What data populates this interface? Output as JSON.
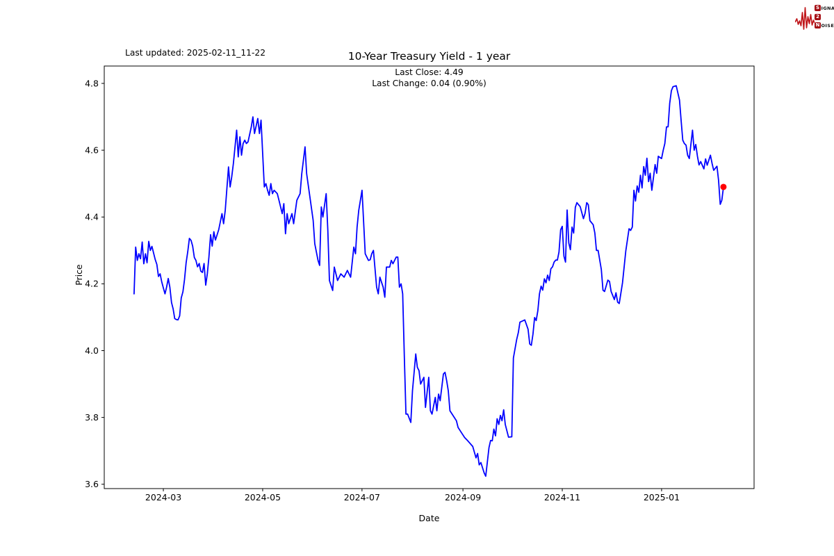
{
  "header": {
    "last_updated": "Last updated: 2025-02-11_11-22",
    "title": "10-Year Treasury Yield - 1 year",
    "subtitle_line1": "Last Close: 4.49",
    "subtitle_line2": "Last Change: 0.04 (0.90%)"
  },
  "logo": {
    "row1_initial": "S",
    "row1_rest": "IGNAL",
    "row2_initial": "2",
    "row2_rest": "",
    "row3_initial": "N",
    "row3_rest": "OISE",
    "wave_color": "#c0181c",
    "box_color": "#a50f15"
  },
  "chart_data": {
    "type": "line",
    "title": "10-Year Treasury Yield - 1 year",
    "subtitle": [
      "Last Close: 4.49",
      "Last Change: 0.04 (0.90%)"
    ],
    "xlabel": "Date",
    "ylabel": "Price",
    "last_close": 4.49,
    "last_change": "0.04 (0.90%)",
    "line_color": "#0000ff",
    "last_point_color": "#ff0000",
    "axis_color": "#000000",
    "x_tick_labels": [
      "2024-03",
      "2024-05",
      "2024-07",
      "2024-09",
      "2024-11",
      "2025-01"
    ],
    "x_tick_days": [
      18,
      79,
      140,
      202,
      263,
      324
    ],
    "y_ticks": [
      3.6,
      3.8,
      4.0,
      4.2,
      4.4,
      4.6,
      4.8
    ],
    "xlim_days": [
      -18.3,
      380.8
    ],
    "ylim": [
      3.587,
      4.852
    ],
    "grid": false,
    "legend": "none",
    "series": [
      {
        "name": "10-Year Treasury Yield",
        "points": [
          [
            0,
            4.17
          ],
          [
            1,
            4.31
          ],
          [
            2,
            4.27
          ],
          [
            3,
            4.29
          ],
          [
            4,
            4.275
          ],
          [
            5,
            4.325
          ],
          [
            6,
            4.26
          ],
          [
            7,
            4.29
          ],
          [
            8,
            4.263
          ],
          [
            9,
            4.327
          ],
          [
            10,
            4.3
          ],
          [
            11,
            4.312
          ],
          [
            13,
            4.273
          ],
          [
            14,
            4.258
          ],
          [
            15,
            4.222
          ],
          [
            16,
            4.23
          ],
          [
            17,
            4.206
          ],
          [
            18,
            4.188
          ],
          [
            19,
            4.17
          ],
          [
            20,
            4.19
          ],
          [
            21,
            4.216
          ],
          [
            22,
            4.19
          ],
          [
            23,
            4.144
          ],
          [
            24,
            4.125
          ],
          [
            25,
            4.096
          ],
          [
            26,
            4.093
          ],
          [
            27,
            4.092
          ],
          [
            28,
            4.104
          ],
          [
            29,
            4.158
          ],
          [
            30,
            4.176
          ],
          [
            31,
            4.213
          ],
          [
            32,
            4.263
          ],
          [
            33,
            4.297
          ],
          [
            34,
            4.336
          ],
          [
            35,
            4.33
          ],
          [
            36,
            4.313
          ],
          [
            37,
            4.279
          ],
          [
            38,
            4.27
          ],
          [
            39,
            4.251
          ],
          [
            40,
            4.261
          ],
          [
            41,
            4.238
          ],
          [
            42,
            4.234
          ],
          [
            43,
            4.261
          ],
          [
            44,
            4.196
          ],
          [
            45,
            4.23
          ],
          [
            46,
            4.28
          ],
          [
            47,
            4.347
          ],
          [
            48,
            4.313
          ],
          [
            49,
            4.356
          ],
          [
            50,
            4.331
          ],
          [
            52,
            4.362
          ],
          [
            54,
            4.41
          ],
          [
            55,
            4.38
          ],
          [
            56,
            4.42
          ],
          [
            58,
            4.55
          ],
          [
            59,
            4.49
          ],
          [
            60,
            4.52
          ],
          [
            61,
            4.56
          ],
          [
            63,
            4.66
          ],
          [
            64,
            4.58
          ],
          [
            65,
            4.64
          ],
          [
            66,
            4.585
          ],
          [
            67,
            4.62
          ],
          [
            68,
            4.63
          ],
          [
            69,
            4.62
          ],
          [
            70,
            4.625
          ],
          [
            72,
            4.67
          ],
          [
            73,
            4.7
          ],
          [
            74,
            4.65
          ],
          [
            76,
            4.695
          ],
          [
            77,
            4.65
          ],
          [
            78,
            4.69
          ],
          [
            80,
            4.49
          ],
          [
            81,
            4.5
          ],
          [
            82,
            4.48
          ],
          [
            83,
            4.465
          ],
          [
            84,
            4.5
          ],
          [
            85,
            4.47
          ],
          [
            86,
            4.48
          ],
          [
            88,
            4.47
          ],
          [
            89,
            4.45
          ],
          [
            91,
            4.41
          ],
          [
            92,
            4.44
          ],
          [
            93,
            4.35
          ],
          [
            94,
            4.41
          ],
          [
            95,
            4.38
          ],
          [
            97,
            4.41
          ],
          [
            98,
            4.38
          ],
          [
            100,
            4.45
          ],
          [
            102,
            4.47
          ],
          [
            103,
            4.53
          ],
          [
            105,
            4.61
          ],
          [
            106,
            4.53
          ],
          [
            108,
            4.46
          ],
          [
            110,
            4.39
          ],
          [
            111,
            4.32
          ],
          [
            113,
            4.27
          ],
          [
            114,
            4.255
          ],
          [
            115,
            4.43
          ],
          [
            116,
            4.4
          ],
          [
            118,
            4.47
          ],
          [
            119,
            4.36
          ],
          [
            120,
            4.21
          ],
          [
            122,
            4.18
          ],
          [
            123,
            4.25
          ],
          [
            125,
            4.21
          ],
          [
            127,
            4.23
          ],
          [
            129,
            4.22
          ],
          [
            131,
            4.24
          ],
          [
            133,
            4.22
          ],
          [
            135,
            4.31
          ],
          [
            136,
            4.29
          ],
          [
            137,
            4.37
          ],
          [
            138,
            4.42
          ],
          [
            140,
            4.48
          ],
          [
            142,
            4.29
          ],
          [
            144,
            4.27
          ],
          [
            145,
            4.272
          ],
          [
            146,
            4.29
          ],
          [
            147,
            4.3
          ],
          [
            149,
            4.19
          ],
          [
            150,
            4.17
          ],
          [
            151,
            4.22
          ],
          [
            153,
            4.19
          ],
          [
            154,
            4.16
          ],
          [
            155,
            4.25
          ],
          [
            157,
            4.25
          ],
          [
            158,
            4.27
          ],
          [
            159,
            4.26
          ],
          [
            161,
            4.28
          ],
          [
            162,
            4.28
          ],
          [
            163,
            4.19
          ],
          [
            164,
            4.2
          ],
          [
            165,
            4.17
          ],
          [
            166,
            3.98
          ],
          [
            167,
            3.81
          ],
          [
            168,
            3.81
          ],
          [
            170,
            3.785
          ],
          [
            171,
            3.88
          ],
          [
            173,
            3.99
          ],
          [
            174,
            3.95
          ],
          [
            175,
            3.94
          ],
          [
            176,
            3.9
          ],
          [
            178,
            3.92
          ],
          [
            179,
            3.83
          ],
          [
            181,
            3.92
          ],
          [
            182,
            3.82
          ],
          [
            183,
            3.81
          ],
          [
            185,
            3.86
          ],
          [
            186,
            3.82
          ],
          [
            187,
            3.87
          ],
          [
            188,
            3.85
          ],
          [
            190,
            3.93
          ],
          [
            191,
            3.935
          ],
          [
            192,
            3.91
          ],
          [
            193,
            3.88
          ],
          [
            194,
            3.82
          ],
          [
            196,
            3.805
          ],
          [
            198,
            3.79
          ],
          [
            199,
            3.77
          ],
          [
            201,
            3.755
          ],
          [
            203,
            3.74
          ],
          [
            205,
            3.73
          ],
          [
            208,
            3.713
          ],
          [
            210,
            3.679
          ],
          [
            211,
            3.692
          ],
          [
            212,
            3.658
          ],
          [
            213,
            3.665
          ],
          [
            215,
            3.634
          ],
          [
            216,
            3.624
          ],
          [
            218,
            3.71
          ],
          [
            219,
            3.731
          ],
          [
            220,
            3.73
          ],
          [
            221,
            3.765
          ],
          [
            222,
            3.745
          ],
          [
            223,
            3.796
          ],
          [
            224,
            3.779
          ],
          [
            225,
            3.806
          ],
          [
            226,
            3.79
          ],
          [
            227,
            3.823
          ],
          [
            228,
            3.779
          ],
          [
            230,
            3.741
          ],
          [
            232,
            3.742
          ],
          [
            233,
            3.978
          ],
          [
            235,
            4.033
          ],
          [
            236,
            4.054
          ],
          [
            237,
            4.085
          ],
          [
            240,
            4.092
          ],
          [
            242,
            4.064
          ],
          [
            243,
            4.02
          ],
          [
            244,
            4.016
          ],
          [
            245,
            4.05
          ],
          [
            246,
            4.099
          ],
          [
            247,
            4.09
          ],
          [
            248,
            4.12
          ],
          [
            249,
            4.17
          ],
          [
            250,
            4.193
          ],
          [
            251,
            4.181
          ],
          [
            252,
            4.215
          ],
          [
            253,
            4.203
          ],
          [
            254,
            4.226
          ],
          [
            255,
            4.21
          ],
          [
            256,
            4.245
          ],
          [
            257,
            4.251
          ],
          [
            258,
            4.265
          ],
          [
            259,
            4.271
          ],
          [
            260,
            4.271
          ],
          [
            261,
            4.295
          ],
          [
            262,
            4.362
          ],
          [
            263,
            4.372
          ],
          [
            264,
            4.283
          ],
          [
            265,
            4.265
          ],
          [
            266,
            4.421
          ],
          [
            267,
            4.322
          ],
          [
            268,
            4.302
          ],
          [
            269,
            4.37
          ],
          [
            270,
            4.352
          ],
          [
            271,
            4.429
          ],
          [
            272,
            4.443
          ],
          [
            273,
            4.437
          ],
          [
            274,
            4.431
          ],
          [
            276,
            4.395
          ],
          [
            277,
            4.411
          ],
          [
            278,
            4.443
          ],
          [
            279,
            4.437
          ],
          [
            280,
            4.389
          ],
          [
            282,
            4.377
          ],
          [
            283,
            4.352
          ],
          [
            284,
            4.3
          ],
          [
            285,
            4.3
          ],
          [
            287,
            4.243
          ],
          [
            288,
            4.181
          ],
          [
            289,
            4.177
          ],
          [
            291,
            4.211
          ],
          [
            292,
            4.207
          ],
          [
            293,
            4.177
          ],
          [
            295,
            4.153
          ],
          [
            296,
            4.173
          ],
          [
            297,
            4.145
          ],
          [
            298,
            4.141
          ],
          [
            300,
            4.203
          ],
          [
            302,
            4.298
          ],
          [
            304,
            4.365
          ],
          [
            305,
            4.36
          ],
          [
            306,
            4.37
          ],
          [
            307,
            4.48
          ],
          [
            308,
            4.448
          ],
          [
            309,
            4.493
          ],
          [
            310,
            4.474
          ],
          [
            311,
            4.525
          ],
          [
            312,
            4.487
          ],
          [
            313,
            4.551
          ],
          [
            314,
            4.525
          ],
          [
            315,
            4.576
          ],
          [
            316,
            4.506
          ],
          [
            317,
            4.531
          ],
          [
            318,
            4.48
          ],
          [
            320,
            4.557
          ],
          [
            321,
            4.531
          ],
          [
            322,
            4.582
          ],
          [
            323,
            4.578
          ],
          [
            324,
            4.575
          ],
          [
            325,
            4.6
          ],
          [
            326,
            4.62
          ],
          [
            327,
            4.67
          ],
          [
            328,
            4.67
          ],
          [
            329,
            4.74
          ],
          [
            330,
            4.778
          ],
          [
            331,
            4.79
          ],
          [
            333,
            4.793
          ],
          [
            335,
            4.75
          ],
          [
            336,
            4.69
          ],
          [
            337,
            4.63
          ],
          [
            338,
            4.62
          ],
          [
            339,
            4.615
          ],
          [
            340,
            4.585
          ],
          [
            341,
            4.575
          ],
          [
            343,
            4.66
          ],
          [
            344,
            4.6
          ],
          [
            345,
            4.617
          ],
          [
            346,
            4.582
          ],
          [
            347,
            4.556
          ],
          [
            348,
            4.566
          ],
          [
            350,
            4.544
          ],
          [
            351,
            4.574
          ],
          [
            352,
            4.555
          ],
          [
            354,
            4.585
          ],
          [
            355,
            4.56
          ],
          [
            356,
            4.54
          ],
          [
            358,
            4.552
          ],
          [
            359,
            4.51
          ],
          [
            360,
            4.438
          ],
          [
            361,
            4.45
          ],
          [
            362,
            4.49
          ]
        ]
      }
    ]
  }
}
